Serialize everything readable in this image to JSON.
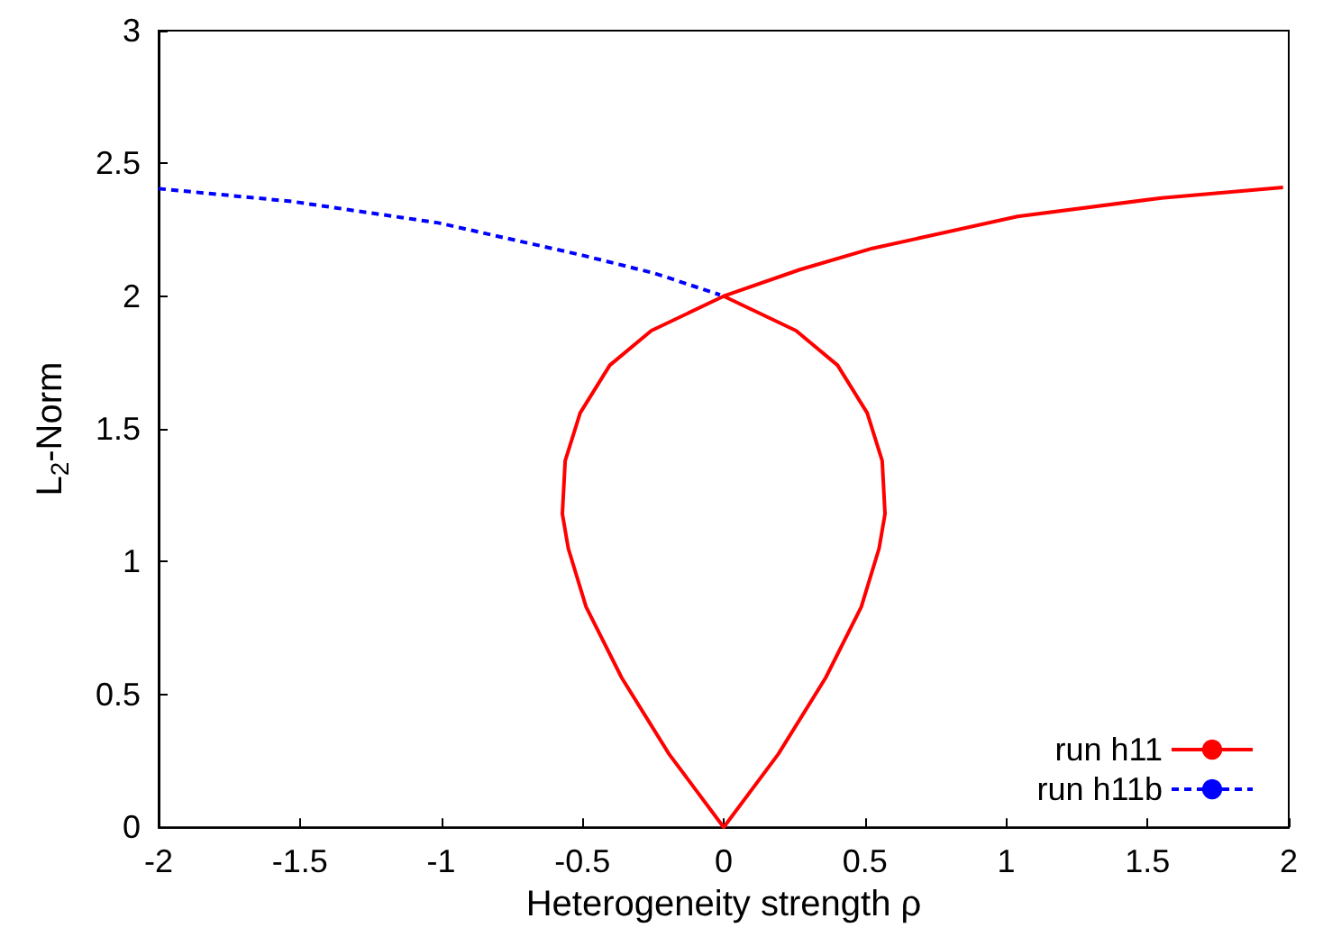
{
  "chart_data": {
    "type": "line",
    "xlabel": "Heterogeneity strength ρ",
    "ylabel": "L$_{2}$-Norm",
    "xlim": [
      -2,
      2
    ],
    "ylim": [
      0,
      3
    ],
    "xticks": [
      -2,
      -1.5,
      -1,
      -0.5,
      0,
      0.5,
      1,
      1.5,
      2
    ],
    "yticks": [
      0,
      0.5,
      1,
      1.5,
      2,
      2.5,
      3
    ],
    "grid": false,
    "legend": "bottom right",
    "marker": "none",
    "series": [
      {
        "name": "run h11",
        "color": "#ff0000",
        "line_style": "solid",
        "x": [
          1.98,
          1.55,
          1.04,
          0.526,
          0.27,
          0,
          0.256,
          0.403,
          0.508,
          0.561,
          0.571,
          0.55,
          0.487,
          0.361,
          0.193,
          0,
          -0.193,
          -0.361,
          -0.487,
          -0.55,
          -0.571,
          -0.561,
          -0.508,
          -0.403,
          -0.256,
          0
        ],
        "values": [
          2.41,
          2.37,
          2.3,
          2.18,
          2.1,
          2.0,
          1.87,
          1.74,
          1.56,
          1.38,
          1.18,
          1.05,
          0.83,
          0.563,
          0.275,
          0,
          0.275,
          0.563,
          0.83,
          1.05,
          1.18,
          1.38,
          1.56,
          1.74,
          1.87,
          2.0
        ]
      },
      {
        "name": "run h11b",
        "color": "#0000ff",
        "line_style": "dashed",
        "x": [
          -2,
          -1.53,
          -1.01,
          -0.5,
          -0.244,
          -0.013
        ],
        "values": [
          2.405,
          2.357,
          2.276,
          2.154,
          2.086,
          2.005
        ]
      }
    ]
  }
}
